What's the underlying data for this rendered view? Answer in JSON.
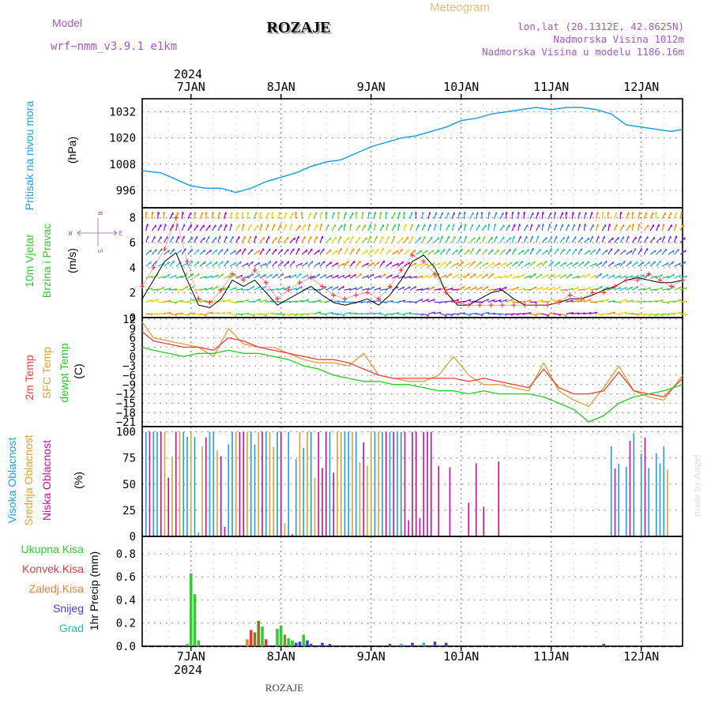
{
  "header": {
    "model_label": "Model",
    "model_name": "wrf−nmm_v3.9.1  e1km",
    "station": "ROZAJE",
    "product": "Meteogram",
    "lonlat": "lon,lat (20.1312E, 42.8625N)",
    "elevation": "Nadmorska Visina 1012m",
    "model_elevation": "Nadmorska Visina u modelu 1186.16m"
  },
  "footer": {
    "station": "ROZAJE",
    "watermark": "made by Angel"
  },
  "time_axis": {
    "year": "2024",
    "days": [
      "7JAN",
      "8JAN",
      "9JAN",
      "10JAN",
      "11JAN",
      "12JAN"
    ],
    "start_hour": -13,
    "end_hour": 131
  },
  "colors": {
    "pressure": "#1ea0e6",
    "temp2m": "#ef3e3e",
    "sfc": "#e0a030",
    "dewpt": "#22cc22",
    "high_cloud": "#1e9fe0",
    "mid_cloud": "#e0a030",
    "low_cloud": "#cc0a9a",
    "total_precip": "#33cc33",
    "convective": "#e63b3b",
    "frozen": "#f08030",
    "snow": "#4040e0",
    "graupel": "#20c0c0",
    "wind_mean": "#000000",
    "gust": "#ff3030"
  },
  "chart_data": [
    {
      "type": "line",
      "title": "Pritisak na nivou mora",
      "ylabel": "(hPa)",
      "ylim": [
        988,
        1038
      ],
      "yticks": [
        996,
        1008,
        1020,
        1032
      ],
      "series": [
        {
          "name": "Pritisak na nivou mora",
          "x": [
            -13,
            -8,
            -4,
            0,
            4,
            8,
            12,
            16,
            20,
            24,
            28,
            32,
            36,
            40,
            44,
            48,
            52,
            56,
            60,
            64,
            68,
            72,
            76,
            80,
            84,
            88,
            92,
            96,
            100,
            104,
            108,
            112,
            116,
            120,
            124,
            128,
            131
          ],
          "values": [
            1005,
            1004,
            1001,
            998,
            997,
            997,
            995,
            997,
            1000,
            1002,
            1004,
            1007,
            1009,
            1010,
            1013,
            1016,
            1018,
            1020,
            1021,
            1023,
            1025,
            1028,
            1029,
            1031,
            1032,
            1033,
            1034,
            1033,
            1034,
            1034,
            1033,
            1031,
            1026,
            1025,
            1024,
            1023,
            1024
          ]
        }
      ]
    },
    {
      "type": "line",
      "title": "10m Vjetar Brzina i Pravac",
      "ylabel": "(m/s)",
      "ylim": [
        0,
        8.8
      ],
      "yticks": [
        0,
        2,
        4,
        6,
        8
      ],
      "direction_legend": {
        "n": "N",
        "s": "S",
        "w": "W",
        "e": "E"
      },
      "series": [
        {
          "name": "mean",
          "x": [
            -13,
            -10,
            -7,
            -4,
            -1,
            2,
            5,
            8,
            11,
            14,
            17,
            20,
            23,
            26,
            29,
            32,
            35,
            38,
            41,
            44,
            47,
            50,
            53,
            56,
            59,
            62,
            65,
            68,
            71,
            74,
            77,
            80,
            83,
            86,
            89,
            92,
            95,
            98,
            101,
            104,
            107,
            110,
            113,
            116,
            119,
            122,
            125,
            128,
            131
          ],
          "values": [
            1.5,
            3.0,
            4.5,
            5.2,
            3.0,
            1.0,
            0.8,
            1.5,
            3.0,
            2.5,
            3.0,
            2.0,
            1.0,
            1.5,
            2.0,
            2.5,
            1.8,
            1.2,
            1.0,
            1.2,
            1.5,
            1.0,
            1.8,
            3.0,
            4.5,
            5.0,
            4.0,
            2.0,
            1.0,
            1.0,
            1.5,
            2.0,
            2.2,
            1.5,
            1.0,
            1.0,
            1.0,
            1.2,
            1.5,
            1.5,
            1.8,
            2.2,
            2.5,
            3.0,
            3.2,
            3.0,
            2.8,
            2.8,
            3.0
          ]
        },
        {
          "name": "gust",
          "x": [
            -13,
            -10,
            -7,
            -4,
            -1,
            2,
            5,
            8,
            11,
            14,
            17,
            20,
            23,
            26,
            29,
            32,
            35,
            38,
            41,
            44,
            47,
            50,
            53,
            56,
            59,
            62,
            65,
            68,
            71,
            74,
            77,
            80,
            83,
            86,
            89,
            92,
            95,
            98,
            101,
            104,
            107,
            110,
            113,
            116,
            119,
            122,
            125,
            128,
            131
          ],
          "values": [
            2.5,
            4.0,
            5.5,
            8.0,
            4.5,
            1.5,
            1.2,
            2.2,
            3.5,
            3.0,
            3.8,
            2.8,
            1.5,
            2.2,
            2.8,
            3.2,
            2.5,
            1.8,
            1.5,
            1.8,
            2.0,
            1.5,
            2.5,
            3.8,
            5.0,
            4.5,
            3.5,
            2.0,
            1.2,
            1.0,
            1.0,
            1.0,
            1.0,
            1.0,
            1.0,
            1.0,
            1.0,
            1.2,
            1.8,
            1.5,
            2.0,
            2.0,
            2.5,
            3.0,
            3.0,
            3.5,
            3.0,
            2.5,
            3.0
          ]
        }
      ]
    },
    {
      "type": "line",
      "ylabel": "(C)",
      "ylim": [
        -22.5,
        12.5
      ],
      "yticks": [
        -21,
        -18,
        -15,
        -12,
        -9,
        -6,
        -3,
        0,
        3,
        6,
        9,
        12
      ],
      "series": [
        {
          "name": "2m Temp",
          "x": [
            -13,
            -10,
            -6,
            -2,
            2,
            6,
            10,
            14,
            18,
            22,
            26,
            30,
            34,
            38,
            42,
            46,
            50,
            54,
            58,
            62,
            66,
            70,
            74,
            78,
            82,
            86,
            90,
            94,
            98,
            102,
            106,
            110,
            114,
            118,
            122,
            126,
            131
          ],
          "values": [
            8,
            5,
            4,
            3,
            3,
            2,
            6,
            5,
            3,
            2,
            1,
            0,
            -1,
            -1,
            -2,
            -4,
            -6,
            -7,
            -7,
            -7,
            -7,
            -7,
            -8,
            -7,
            -8,
            -9,
            -10,
            -4,
            -10,
            -12,
            -12,
            -11,
            -5,
            -11,
            -12,
            -13,
            -7
          ]
        },
        {
          "name": "SFC Temp",
          "x": [
            -13,
            -10,
            -6,
            -2,
            2,
            6,
            10,
            14,
            18,
            22,
            26,
            30,
            34,
            38,
            42,
            46,
            50,
            54,
            58,
            62,
            66,
            70,
            74,
            78,
            82,
            86,
            90,
            94,
            98,
            102,
            106,
            110,
            114,
            118,
            122,
            126,
            131
          ],
          "values": [
            11,
            6,
            5,
            4,
            3,
            0,
            9,
            4,
            3,
            3,
            1,
            -1,
            -2,
            -2,
            -3,
            1,
            -6,
            -7,
            -8,
            -8,
            -6,
            0,
            -6,
            -9,
            -9,
            -10,
            -11,
            -2,
            -11,
            -14,
            -16,
            -10,
            -3,
            -11,
            -13,
            -14,
            -6
          ]
        },
        {
          "name": "dewpt Temp",
          "x": [
            -13,
            -10,
            -6,
            -2,
            2,
            6,
            10,
            14,
            18,
            22,
            26,
            30,
            34,
            38,
            42,
            46,
            50,
            54,
            58,
            62,
            66,
            70,
            74,
            78,
            82,
            86,
            90,
            94,
            98,
            102,
            106,
            110,
            114,
            118,
            122,
            126,
            131
          ],
          "values": [
            3,
            2,
            1,
            0,
            1,
            1,
            2,
            1,
            1,
            0,
            -1,
            -3,
            -4,
            -6,
            -7,
            -8,
            -8,
            -9,
            -9,
            -10,
            -11,
            -11,
            -12,
            -11,
            -12,
            -12,
            -12,
            -13,
            -15,
            -17,
            -21,
            -19,
            -15,
            -13,
            -12,
            -11,
            -9
          ]
        }
      ]
    },
    {
      "type": "bar",
      "ylabel": "(%)",
      "ylim": [
        0,
        105
      ],
      "yticks": [
        0,
        25,
        50,
        75,
        100
      ],
      "series": [
        {
          "name": "Visoka Oblacnost"
        },
        {
          "name": "Srednja Oblacnost"
        },
        {
          "name": "Niska Oblacnost"
        }
      ]
    },
    {
      "type": "bar",
      "ylabel": "1hr Precip (mm)",
      "ylim": [
        0,
        0.95
      ],
      "yticks": [
        0.0,
        0.2,
        0.4,
        0.6,
        0.8
      ],
      "series": [
        {
          "name": "Ukupna Kisa"
        },
        {
          "name": "Konvek.Kisa"
        },
        {
          "name": "Zaledj.Kisa"
        },
        {
          "name": "Snijeg"
        },
        {
          "name": "Grad"
        }
      ]
    }
  ]
}
